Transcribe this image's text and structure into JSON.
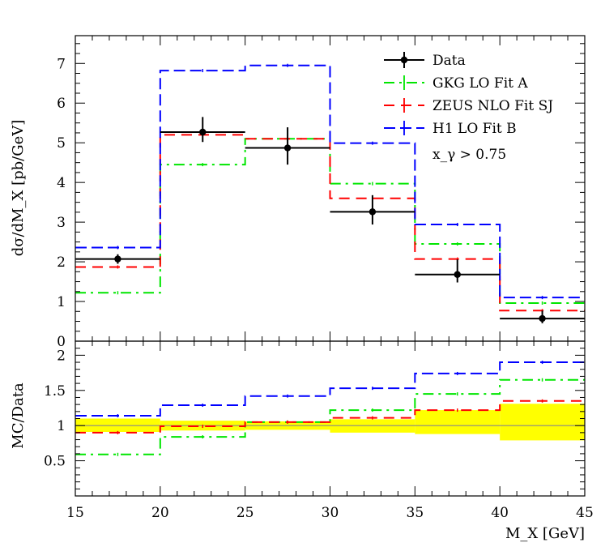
{
  "chart_data": [
    {
      "panel": "top",
      "type": "step",
      "x_bins": [
        15,
        20,
        25,
        30,
        35,
        40,
        45
      ],
      "xlim": [
        15,
        45
      ],
      "ylim": [
        0,
        7.7
      ],
      "ylabel": "dσ/dM_X [pb/GeV]",
      "yticks": [
        "0",
        "1",
        "2",
        "3",
        "4",
        "5",
        "6",
        "7"
      ],
      "annotation": "x_γ > 0.75",
      "data": {
        "name": "Data",
        "x": [
          17.5,
          22.5,
          27.5,
          32.5,
          37.5,
          42.5
        ],
        "y": [
          2.07,
          5.27,
          4.87,
          3.26,
          1.68,
          0.57
        ],
        "yerr_up": [
          0.12,
          0.38,
          0.52,
          0.42,
          0.38,
          0.2
        ],
        "yerr_down": [
          0.12,
          0.25,
          0.42,
          0.32,
          0.2,
          0.12
        ]
      },
      "series": [
        {
          "name": "GKG LO Fit A",
          "color": "#00e600",
          "values": [
            1.22,
            4.45,
            5.1,
            3.97,
            2.45,
            0.96
          ]
        },
        {
          "name": "ZEUS NLO Fit SJ",
          "color": "#ff0000",
          "values": [
            1.87,
            5.2,
            5.1,
            3.6,
            2.07,
            0.77
          ]
        },
        {
          "name": "H1 LO Fit B",
          "color": "#0000ff",
          "values": [
            2.36,
            6.82,
            6.95,
            4.99,
            2.94,
            1.1
          ]
        }
      ]
    },
    {
      "panel": "bottom",
      "type": "step",
      "x_bins": [
        15,
        20,
        25,
        30,
        35,
        40,
        45
      ],
      "xlim": [
        15,
        45
      ],
      "ylim": [
        0,
        2.2
      ],
      "ylabel": "MC/Data",
      "xlabel": "M_X [GeV]",
      "yticks": [
        "0.5",
        "1",
        "1.5",
        "2"
      ],
      "xticks": [
        "15",
        "20",
        "25",
        "30",
        "35",
        "40",
        "45"
      ],
      "reference_line": 1,
      "band": {
        "color": "#ffff00",
        "lower": [
          0.91,
          0.93,
          0.94,
          0.9,
          0.88,
          0.79
        ],
        "upper": [
          1.1,
          1.07,
          1.06,
          1.09,
          1.22,
          1.31
        ]
      },
      "series": [
        {
          "name": "GKG LO Fit A",
          "color": "#00e600",
          "values": [
            0.59,
            0.84,
            1.05,
            1.22,
            1.45,
            1.65
          ]
        },
        {
          "name": "ZEUS NLO Fit SJ",
          "color": "#ff0000",
          "values": [
            0.9,
            0.99,
            1.05,
            1.11,
            1.22,
            1.35
          ]
        },
        {
          "name": "H1 LO Fit B",
          "color": "#0000ff",
          "values": [
            1.14,
            1.29,
            1.42,
            1.53,
            1.74,
            1.9
          ]
        }
      ]
    }
  ]
}
